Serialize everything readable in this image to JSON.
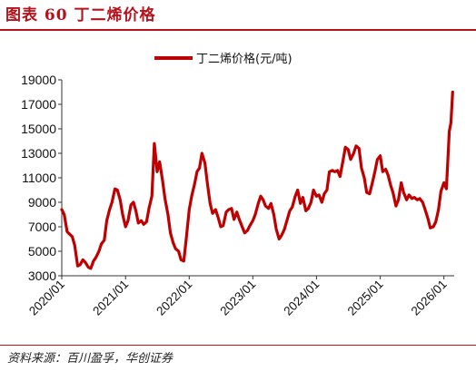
{
  "header": {
    "title": "图表 60 丁二烯价格"
  },
  "footer": {
    "source": "资料来源：百川盈孚，华创证券"
  },
  "colors": {
    "accent": "#b5121b",
    "series": "#c00000"
  },
  "chart_data": {
    "type": "line",
    "title": "",
    "xlabel": "",
    "ylabel": "",
    "legend_position": "top-center",
    "grid": false,
    "ylim": [
      3000,
      19000
    ],
    "yticks": [
      "19000",
      "17000",
      "15000",
      "13000",
      "11000",
      "9000",
      "7000",
      "5000",
      "3000"
    ],
    "xticks": [
      "2020/01",
      "2021/01",
      "2022/01",
      "2023/01",
      "2024/01",
      "2025/01",
      "2026/01"
    ],
    "series": [
      {
        "name": "丁二烯价格(元/吨)",
        "points": [
          [
            "2020-01-01",
            8400
          ],
          [
            "2020-01-15",
            8000
          ],
          [
            "2020-02-01",
            6600
          ],
          [
            "2020-02-15",
            6400
          ],
          [
            "2020-03-01",
            6200
          ],
          [
            "2020-03-15",
            5500
          ],
          [
            "2020-04-01",
            3800
          ],
          [
            "2020-04-15",
            3900
          ],
          [
            "2020-05-01",
            4300
          ],
          [
            "2020-05-15",
            4100
          ],
          [
            "2020-06-01",
            3700
          ],
          [
            "2020-06-15",
            3600
          ],
          [
            "2020-07-01",
            4200
          ],
          [
            "2020-07-15",
            4500
          ],
          [
            "2020-08-01",
            5000
          ],
          [
            "2020-08-15",
            5600
          ],
          [
            "2020-09-01",
            5900
          ],
          [
            "2020-09-15",
            7500
          ],
          [
            "2020-10-01",
            8400
          ],
          [
            "2020-10-15",
            9000
          ],
          [
            "2020-11-01",
            10100
          ],
          [
            "2020-11-15",
            10000
          ],
          [
            "2020-12-01",
            9200
          ],
          [
            "2020-12-15",
            8000
          ],
          [
            "2021-01-01",
            7000
          ],
          [
            "2021-01-15",
            7500
          ],
          [
            "2021-02-01",
            8800
          ],
          [
            "2021-02-15",
            9000
          ],
          [
            "2021-03-01",
            8300
          ],
          [
            "2021-03-15",
            7300
          ],
          [
            "2021-04-01",
            7500
          ],
          [
            "2021-04-15",
            7200
          ],
          [
            "2021-05-01",
            7400
          ],
          [
            "2021-05-15",
            8500
          ],
          [
            "2021-06-01",
            9500
          ],
          [
            "2021-06-15",
            13800
          ],
          [
            "2021-07-01",
            11500
          ],
          [
            "2021-07-15",
            12300
          ],
          [
            "2021-08-01",
            10800
          ],
          [
            "2021-08-15",
            9300
          ],
          [
            "2021-09-01",
            8000
          ],
          [
            "2021-09-15",
            6500
          ],
          [
            "2021-10-01",
            5700
          ],
          [
            "2021-10-15",
            5200
          ],
          [
            "2021-11-01",
            5000
          ],
          [
            "2021-11-15",
            4300
          ],
          [
            "2021-12-01",
            4200
          ],
          [
            "2021-12-15",
            6000
          ],
          [
            "2022-01-01",
            8400
          ],
          [
            "2022-01-15",
            9500
          ],
          [
            "2022-02-01",
            10500
          ],
          [
            "2022-02-15",
            11500
          ],
          [
            "2022-03-01",
            11800
          ],
          [
            "2022-03-15",
            13000
          ],
          [
            "2022-04-01",
            12200
          ],
          [
            "2022-04-15",
            10600
          ],
          [
            "2022-05-01",
            8900
          ],
          [
            "2022-05-15",
            8100
          ],
          [
            "2022-06-01",
            8400
          ],
          [
            "2022-06-15",
            7800
          ],
          [
            "2022-07-01",
            7000
          ],
          [
            "2022-07-15",
            7100
          ],
          [
            "2022-08-01",
            8200
          ],
          [
            "2022-08-15",
            8400
          ],
          [
            "2022-09-01",
            8500
          ],
          [
            "2022-09-15",
            7600
          ],
          [
            "2022-10-01",
            8200
          ],
          [
            "2022-10-15",
            7600
          ],
          [
            "2022-11-01",
            7000
          ],
          [
            "2022-11-15",
            6500
          ],
          [
            "2022-12-01",
            6700
          ],
          [
            "2022-12-15",
            7100
          ],
          [
            "2023-01-01",
            7500
          ],
          [
            "2023-01-15",
            8000
          ],
          [
            "2023-02-01",
            8900
          ],
          [
            "2023-02-15",
            9500
          ],
          [
            "2023-03-01",
            9200
          ],
          [
            "2023-03-15",
            8700
          ],
          [
            "2023-04-01",
            8500
          ],
          [
            "2023-04-15",
            8900
          ],
          [
            "2023-05-01",
            8000
          ],
          [
            "2023-05-15",
            6800
          ],
          [
            "2023-06-01",
            6000
          ],
          [
            "2023-06-15",
            6300
          ],
          [
            "2023-07-01",
            6800
          ],
          [
            "2023-07-15",
            7500
          ],
          [
            "2023-08-01",
            8300
          ],
          [
            "2023-08-15",
            8600
          ],
          [
            "2023-09-01",
            9500
          ],
          [
            "2023-09-15",
            10000
          ],
          [
            "2023-10-01",
            8900
          ],
          [
            "2023-10-15",
            9400
          ],
          [
            "2023-11-01",
            8300
          ],
          [
            "2023-11-15",
            8500
          ],
          [
            "2023-12-01",
            9000
          ],
          [
            "2023-12-15",
            10000
          ],
          [
            "2024-01-01",
            9500
          ],
          [
            "2024-01-15",
            9600
          ],
          [
            "2024-02-01",
            9000
          ],
          [
            "2024-02-15",
            9700
          ],
          [
            "2024-03-01",
            10000
          ],
          [
            "2024-03-15",
            11500
          ],
          [
            "2024-04-01",
            11600
          ],
          [
            "2024-04-15",
            11500
          ],
          [
            "2024-05-01",
            11600
          ],
          [
            "2024-05-15",
            11100
          ],
          [
            "2024-06-01",
            12400
          ],
          [
            "2024-06-15",
            13500
          ],
          [
            "2024-07-01",
            13300
          ],
          [
            "2024-07-15",
            12500
          ],
          [
            "2024-08-01",
            13000
          ],
          [
            "2024-08-15",
            13600
          ],
          [
            "2024-09-01",
            13400
          ],
          [
            "2024-09-15",
            11800
          ],
          [
            "2024-10-01",
            11000
          ],
          [
            "2024-10-15",
            9800
          ],
          [
            "2024-11-01",
            9700
          ],
          [
            "2024-11-15",
            10500
          ],
          [
            "2024-12-01",
            11500
          ],
          [
            "2024-12-15",
            12500
          ],
          [
            "2025-01-01",
            12800
          ],
          [
            "2025-01-15",
            11500
          ],
          [
            "2025-02-01",
            11700
          ],
          [
            "2025-02-15",
            11200
          ],
          [
            "2025-03-01",
            10400
          ],
          [
            "2025-03-15",
            9800
          ],
          [
            "2025-04-01",
            8700
          ],
          [
            "2025-04-15",
            9200
          ],
          [
            "2025-05-01",
            10600
          ],
          [
            "2025-05-15",
            9800
          ],
          [
            "2025-06-01",
            9200
          ],
          [
            "2025-06-15",
            9600
          ],
          [
            "2025-07-01",
            9300
          ],
          [
            "2025-07-15",
            9400
          ],
          [
            "2025-08-01",
            9200
          ],
          [
            "2025-08-15",
            9300
          ],
          [
            "2025-09-01",
            9000
          ],
          [
            "2025-09-15",
            8400
          ],
          [
            "2025-10-01",
            7700
          ],
          [
            "2025-10-15",
            6900
          ],
          [
            "2025-11-01",
            7000
          ],
          [
            "2025-11-15",
            7400
          ],
          [
            "2025-12-01",
            8400
          ],
          [
            "2025-12-15",
            9900
          ],
          [
            "2026-01-01",
            10600
          ],
          [
            "2026-01-15",
            10100
          ],
          [
            "2026-02-01",
            14800
          ],
          [
            "2026-02-10",
            15500
          ],
          [
            "2026-02-20",
            18000
          ]
        ]
      }
    ]
  }
}
